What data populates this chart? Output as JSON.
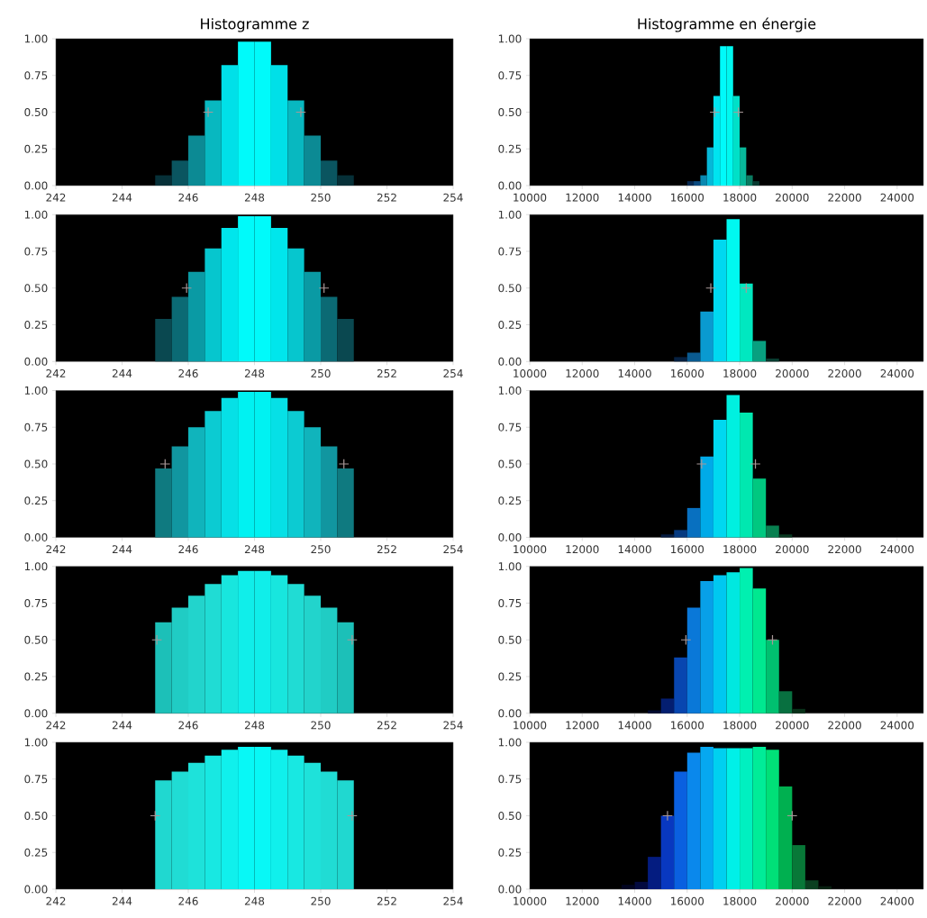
{
  "chart_data": [
    {
      "type": "histogram",
      "title": "Histogramme z",
      "xlim": [
        242,
        254
      ],
      "xticks": [
        242,
        244,
        246,
        248,
        250,
        252,
        254
      ],
      "ylim": [
        0,
        1
      ],
      "yticks": [
        {
          "value": 0,
          "label": "0.00"
        },
        {
          "value": 0.25,
          "label": "0.25"
        },
        {
          "value": 0.5,
          "label": "0.50"
        },
        {
          "value": 0.75,
          "label": "0.75"
        },
        {
          "value": 1,
          "label": "1.00"
        }
      ],
      "series": [
        {
          "type": "histogram",
          "bins": [
            245,
            245.5,
            246,
            246.5,
            247,
            247.5,
            248,
            248.5,
            249,
            249.5,
            250,
            250.5,
            251
          ],
          "values": [
            0.07,
            0.17,
            0.34,
            0.58,
            0.82,
            0.98,
            0.98,
            0.82,
            0.58,
            0.34,
            0.17,
            0.07
          ],
          "colors": [
            "#063038",
            "#0a5560",
            "#0c8a94",
            "#08b8c0",
            "#00e0e8",
            "#00fafa",
            "#00fafa",
            "#00e0e8",
            "#08b8c0",
            "#0c8a94",
            "#0a5560",
            "#063038"
          ]
        },
        {
          "type": "scatter",
          "x": [
            246.6,
            249.4
          ],
          "values": [
            0.5,
            0.5
          ],
          "color": "#a89898",
          "marker": "cross"
        }
      ]
    },
    {
      "type": "histogram",
      "title": "Histogramme en énergie",
      "xlim": [
        10000,
        25000
      ],
      "xticks": [
        10000,
        12000,
        14000,
        16000,
        18000,
        20000,
        22000,
        24000
      ],
      "ylim": [
        0,
        1
      ],
      "yticks": [
        {
          "value": 0,
          "label": "0.00"
        },
        {
          "value": 0.25,
          "label": "0.25"
        },
        {
          "value": 0.5,
          "label": "0.50"
        },
        {
          "value": 0.75,
          "label": "0.75"
        },
        {
          "value": 1,
          "label": "1.00"
        }
      ],
      "series": [
        {
          "type": "histogram",
          "bins": [
            16000,
            16250,
            16500,
            16750,
            17000,
            17250,
            17500,
            17750,
            18000,
            18250,
            18500,
            18750
          ],
          "values": [
            0.03,
            0.03,
            0.07,
            0.26,
            0.61,
            0.95,
            0.95,
            0.61,
            0.26,
            0.07,
            0.03
          ],
          "colors": [
            "#062850",
            "#0a4a80",
            "#0a88b0",
            "#06b8d8",
            "#00e4f0",
            "#00fafa",
            "#00f8f0",
            "#00e0c8",
            "#08b89a",
            "#0a7a60",
            "#083a30"
          ]
        },
        {
          "type": "scatter",
          "x": [
            17050,
            17950
          ],
          "values": [
            0.5,
            0.5
          ],
          "color": "#a89898",
          "marker": "cross"
        }
      ]
    },
    {
      "type": "histogram",
      "xlim": [
        242,
        254
      ],
      "xticks": [
        242,
        244,
        246,
        248,
        250,
        252,
        254
      ],
      "ylim": [
        0,
        1
      ],
      "yticks": [
        {
          "value": 0,
          "label": "0.00"
        },
        {
          "value": 0.25,
          "label": "0.25"
        },
        {
          "value": 0.5,
          "label": "0.50"
        },
        {
          "value": 0.75,
          "label": "0.75"
        },
        {
          "value": 1,
          "label": "1.00"
        }
      ],
      "series": [
        {
          "type": "histogram",
          "bins": [
            245,
            245.5,
            246,
            246.5,
            247,
            247.5,
            248,
            248.5,
            249,
            249.5,
            250,
            250.5,
            251
          ],
          "values": [
            0.29,
            0.44,
            0.61,
            0.77,
            0.91,
            0.99,
            0.99,
            0.91,
            0.77,
            0.61,
            0.44,
            0.29
          ],
          "colors": [
            "#0a4850",
            "#0b6a74",
            "#0a9aa4",
            "#06c6ce",
            "#00e6ec",
            "#00fafa",
            "#00fafa",
            "#00e6ec",
            "#06c6ce",
            "#0a9aa4",
            "#0b6a74",
            "#0a4850"
          ]
        },
        {
          "type": "scatter",
          "x": [
            245.95,
            250.1
          ],
          "values": [
            0.5,
            0.5
          ],
          "color": "#a89898",
          "marker": "cross"
        }
      ]
    },
    {
      "type": "histogram",
      "xlim": [
        10000,
        25000
      ],
      "xticks": [
        10000,
        12000,
        14000,
        16000,
        18000,
        20000,
        22000,
        24000
      ],
      "ylim": [
        0,
        1
      ],
      "yticks": [
        {
          "value": 0,
          "label": "0.00"
        },
        {
          "value": 0.25,
          "label": "0.25"
        },
        {
          "value": 0.5,
          "label": "0.50"
        },
        {
          "value": 0.75,
          "label": "0.75"
        },
        {
          "value": 1,
          "label": "1.00"
        }
      ],
      "series": [
        {
          "type": "histogram",
          "bins": [
            15500,
            16000,
            16500,
            17000,
            17500,
            18000,
            18500,
            19000,
            19500
          ],
          "values": [
            0.03,
            0.06,
            0.34,
            0.83,
            0.97,
            0.53,
            0.14,
            0.02
          ],
          "colors": [
            "#062040",
            "#0a5a90",
            "#0a9ad0",
            "#00d8f0",
            "#00f8f0",
            "#00e8c0",
            "#08a080",
            "#083c30"
          ]
        },
        {
          "type": "scatter",
          "x": [
            16900,
            18250
          ],
          "values": [
            0.5,
            0.5
          ],
          "color": "#a89898",
          "marker": "cross"
        }
      ]
    },
    {
      "type": "histogram",
      "xlim": [
        242,
        254
      ],
      "xticks": [
        242,
        244,
        246,
        248,
        250,
        252,
        254
      ],
      "ylim": [
        0,
        1
      ],
      "yticks": [
        {
          "value": 0,
          "label": "0.00"
        },
        {
          "value": 0.25,
          "label": "0.25"
        },
        {
          "value": 0.5,
          "label": "0.50"
        },
        {
          "value": 0.75,
          "label": "0.75"
        },
        {
          "value": 1,
          "label": "1.00"
        }
      ],
      "series": [
        {
          "type": "histogram",
          "bins": [
            245,
            245.5,
            246,
            246.5,
            247,
            247.5,
            248,
            248.5,
            249,
            249.5,
            250,
            250.5,
            251
          ],
          "values": [
            0.47,
            0.62,
            0.75,
            0.86,
            0.95,
            0.99,
            0.99,
            0.95,
            0.86,
            0.75,
            0.62,
            0.47
          ],
          "colors": [
            "#0f7a80",
            "#1196a0",
            "#10b4bc",
            "#0ccbd2",
            "#06e0e6",
            "#00f2f2",
            "#00f2f2",
            "#06e0e6",
            "#0ccbd2",
            "#10b4bc",
            "#1196a0",
            "#0f7a80"
          ]
        },
        {
          "type": "scatter",
          "x": [
            245.3,
            250.7
          ],
          "values": [
            0.5,
            0.5
          ],
          "color": "#a89898",
          "marker": "cross"
        }
      ]
    },
    {
      "type": "histogram",
      "xlim": [
        10000,
        25000
      ],
      "xticks": [
        10000,
        12000,
        14000,
        16000,
        18000,
        20000,
        22000,
        24000
      ],
      "ylim": [
        0,
        1
      ],
      "yticks": [
        {
          "value": 0,
          "label": "0.00"
        },
        {
          "value": 0.25,
          "label": "0.25"
        },
        {
          "value": 0.5,
          "label": "0.50"
        },
        {
          "value": 0.75,
          "label": "0.75"
        },
        {
          "value": 1,
          "label": "1.00"
        }
      ],
      "series": [
        {
          "type": "histogram",
          "bins": [
            15000,
            15500,
            16000,
            16500,
            17000,
            17500,
            18000,
            18500,
            19000,
            19500,
            20000
          ],
          "values": [
            0.02,
            0.05,
            0.2,
            0.55,
            0.8,
            0.97,
            0.85,
            0.4,
            0.08,
            0.02
          ],
          "colors": [
            "#041a40",
            "#063a80",
            "#0870c0",
            "#00aae8",
            "#00d8f0",
            "#00f0e0",
            "#00e8b0",
            "#00c880",
            "#088050",
            "#083820"
          ]
        },
        {
          "type": "scatter",
          "x": [
            16550,
            18600
          ],
          "values": [
            0.5,
            0.5
          ],
          "color": "#a89898",
          "marker": "cross"
        }
      ]
    },
    {
      "type": "histogram",
      "xlim": [
        242,
        254
      ],
      "xticks": [
        242,
        244,
        246,
        248,
        250,
        252,
        254
      ],
      "ylim": [
        0,
        1
      ],
      "yticks": [
        {
          "value": 0,
          "label": "0.00"
        },
        {
          "value": 0.25,
          "label": "0.25"
        },
        {
          "value": 0.5,
          "label": "0.50"
        },
        {
          "value": 0.75,
          "label": "0.75"
        },
        {
          "value": 1,
          "label": "1.00"
        }
      ],
      "series": [
        {
          "type": "histogram",
          "bins": [
            245,
            245.5,
            246,
            246.5,
            247,
            247.5,
            248,
            248.5,
            249,
            249.5,
            250,
            250.5,
            251
          ],
          "values": [
            0.62,
            0.72,
            0.8,
            0.88,
            0.94,
            0.97,
            0.97,
            0.94,
            0.88,
            0.8,
            0.72,
            0.62
          ],
          "colors": [
            "#1cc0b8",
            "#20ccc4",
            "#22d4cc",
            "#20dcd4",
            "#18e6de",
            "#10eeea",
            "#10eeea",
            "#18e6de",
            "#20dcd4",
            "#22d4cc",
            "#20ccc4",
            "#1cc0b8"
          ]
        },
        {
          "type": "scatter",
          "x": [
            245.05,
            250.95
          ],
          "values": [
            0.5,
            0.5
          ],
          "color": "#a89898",
          "marker": "cross"
        }
      ]
    },
    {
      "type": "histogram",
      "xlim": [
        10000,
        25000
      ],
      "xticks": [
        10000,
        12000,
        14000,
        16000,
        18000,
        20000,
        22000,
        24000
      ],
      "ylim": [
        0,
        1
      ],
      "yticks": [
        {
          "value": 0,
          "label": "0.00"
        },
        {
          "value": 0.25,
          "label": "0.25"
        },
        {
          "value": 0.5,
          "label": "0.50"
        },
        {
          "value": 0.75,
          "label": "0.75"
        },
        {
          "value": 1,
          "label": "1.00"
        }
      ],
      "series": [
        {
          "type": "histogram",
          "bins": [
            14500,
            15000,
            15500,
            16000,
            16500,
            17000,
            17500,
            18000,
            18500,
            19000,
            19500,
            20000,
            20500
          ],
          "values": [
            0.02,
            0.1,
            0.38,
            0.72,
            0.9,
            0.94,
            0.96,
            0.99,
            0.85,
            0.5,
            0.15,
            0.03
          ],
          "colors": [
            "#020a30",
            "#041e70",
            "#0846b0",
            "#0a78d8",
            "#08a0e8",
            "#00c8f0",
            "#00e8e0",
            "#00f0b0",
            "#00e890",
            "#00c070",
            "#087040",
            "#083018"
          ]
        },
        {
          "type": "scatter",
          "x": [
            15950,
            19250
          ],
          "values": [
            0.5,
            0.5
          ],
          "color": "#a89898",
          "marker": "cross"
        }
      ]
    },
    {
      "type": "histogram",
      "xlim": [
        242,
        254
      ],
      "xticks": [
        242,
        244,
        246,
        248,
        250,
        252,
        254
      ],
      "ylim": [
        0,
        1
      ],
      "yticks": [
        {
          "value": 0,
          "label": "0.00"
        },
        {
          "value": 0.25,
          "label": "0.25"
        },
        {
          "value": 0.5,
          "label": "0.50"
        },
        {
          "value": 0.75,
          "label": "0.75"
        },
        {
          "value": 1,
          "label": "1.00"
        }
      ],
      "series": [
        {
          "type": "histogram",
          "bins": [
            245,
            245.5,
            246,
            246.5,
            247,
            247.5,
            248,
            248.5,
            249,
            249.5,
            250,
            250.5,
            251
          ],
          "values": [
            0.74,
            0.8,
            0.86,
            0.91,
            0.95,
            0.97,
            0.97,
            0.95,
            0.91,
            0.86,
            0.8,
            0.74
          ],
          "colors": [
            "#20d8d0",
            "#20dcd4",
            "#1ee2da",
            "#18e8e2",
            "#10f0ec",
            "#08f8f6",
            "#08f8f6",
            "#10f0ec",
            "#18e8e2",
            "#1ee2da",
            "#20dcd4",
            "#20d8d0"
          ]
        },
        {
          "type": "scatter",
          "x": [
            245.0,
            250.95
          ],
          "values": [
            0.5,
            0.5
          ],
          "color": "#a89898",
          "marker": "cross"
        }
      ]
    },
    {
      "type": "histogram",
      "xlim": [
        10000,
        25000
      ],
      "xticks": [
        10000,
        12000,
        14000,
        16000,
        18000,
        20000,
        22000,
        24000
      ],
      "ylim": [
        0,
        1
      ],
      "yticks": [
        {
          "value": 0,
          "label": "0.00"
        },
        {
          "value": 0.25,
          "label": "0.25"
        },
        {
          "value": 0.5,
          "label": "0.50"
        },
        {
          "value": 0.75,
          "label": "0.75"
        },
        {
          "value": 1,
          "label": "1.00"
        }
      ],
      "series": [
        {
          "type": "histogram",
          "bins": [
            13500,
            14000,
            14500,
            15000,
            15500,
            16000,
            16500,
            17000,
            17500,
            18000,
            18500,
            19000,
            19500,
            20000,
            20500,
            21000,
            21500
          ],
          "values": [
            0.03,
            0.05,
            0.22,
            0.5,
            0.8,
            0.93,
            0.97,
            0.96,
            0.96,
            0.96,
            0.97,
            0.95,
            0.7,
            0.3,
            0.06,
            0.02
          ],
          "colors": [
            "#020420",
            "#030a40",
            "#041c80",
            "#0838c0",
            "#0a60e0",
            "#0a88ec",
            "#06a8f0",
            "#00d0f0",
            "#00f0e8",
            "#00f0c0",
            "#00ec98",
            "#00e078",
            "#00b050",
            "#087838",
            "#0a4020",
            "#082010"
          ]
        },
        {
          "type": "scatter",
          "x": [
            15250,
            20000
          ],
          "values": [
            0.5,
            0.5
          ],
          "color": "#a89898",
          "marker": "cross"
        }
      ]
    }
  ]
}
